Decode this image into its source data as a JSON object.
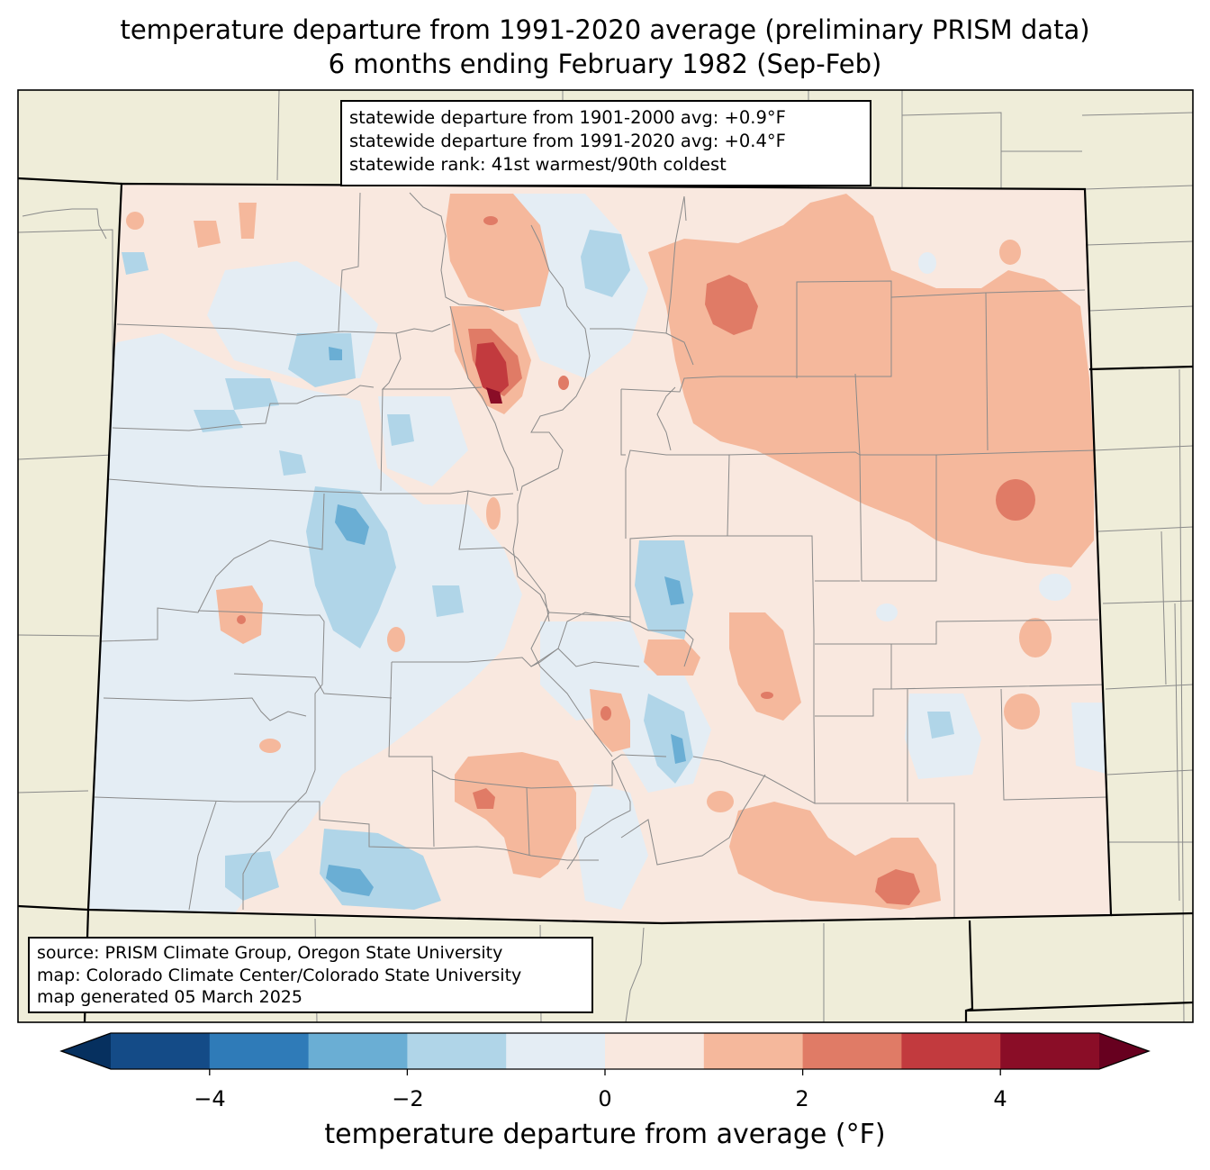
{
  "title": {
    "line1": "temperature departure from 1991-2020 average (preliminary PRISM data)",
    "line2": "6 months ending February 1982 (Sep-Feb)"
  },
  "stats_box": {
    "line1": "statewide departure from 1901-2000 avg: +0.9°F",
    "line2": "statewide departure from 1991-2020 avg: +0.4°F",
    "line3": "statewide rank: 41st warmest/90th coldest"
  },
  "source_box": {
    "line1": "source: PRISM Climate Group, Oregon State University",
    "line2": "map: Colorado Climate Center/Colorado State University",
    "line3": "map generated 05 March 2025"
  },
  "colorbar": {
    "label": "temperature departure from average (°F)",
    "ticks": [
      "−4",
      "−2",
      "0",
      "2",
      "4"
    ],
    "levels": [
      -5,
      -4,
      -3,
      -2,
      -1,
      0,
      1,
      2,
      3,
      4,
      5
    ],
    "colors": [
      "#144b87",
      "#2f7bb8",
      "#6aaed4",
      "#b0d5e8",
      "#e4edf4",
      "#f9e8df",
      "#f5b89c",
      "#e07b66",
      "#c23a3e",
      "#8a0d27"
    ],
    "under_color": "#06305f",
    "over_color": "#67001f"
  },
  "map": {
    "land_color": "#efedd9",
    "state_fill": "#f9e8df"
  }
}
